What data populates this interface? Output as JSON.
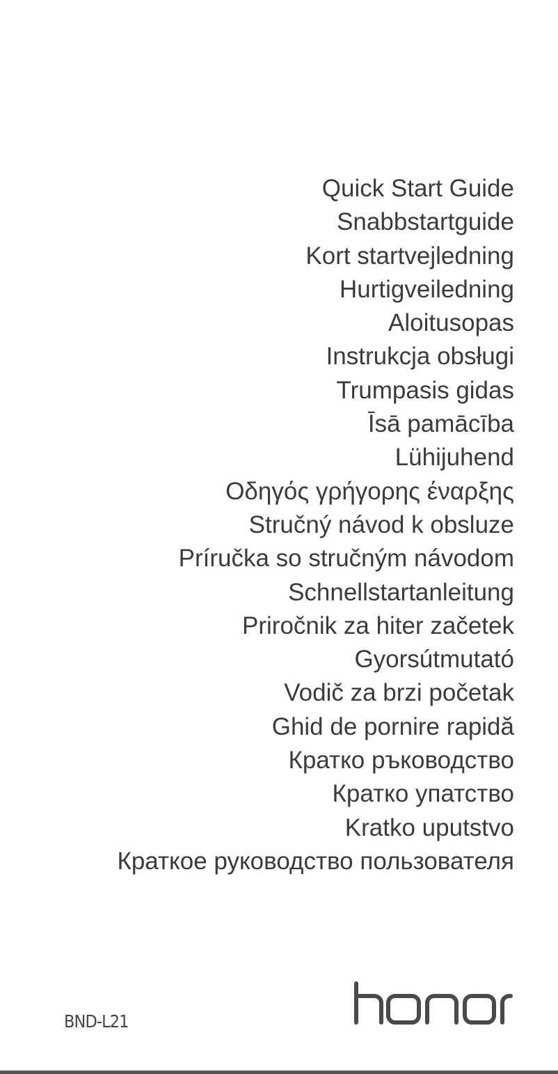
{
  "titles": [
    "Quick Start Guide",
    "Snabbstartguide",
    "Kort startvejledning",
    "Hurtigveiledning",
    "Aloitusopas",
    "Instrukcja obsługi",
    "Trumpasis gidas",
    "Īsā pamācība",
    "Lühijuhend",
    "Οδηγός γρήγορης έναρξης",
    "Stručný návod k obsluze",
    "Príručka so stručným návodom",
    "Schnellstartanleitung",
    "Priročnik za hiter začetek",
    "Gyorsútmutató",
    "Vodič za brzi početak",
    "Ghid de pornire rapidă",
    "Кратко ръководство",
    "Кратко упатство",
    "Kratko uputstvo",
    "Краткое руководство пользователя"
  ],
  "footer": {
    "model": "BND-L21",
    "brand_logo": "honor"
  },
  "colors": {
    "text": "#3b3b3b",
    "logo": "#4a4a4a",
    "rule": "#555555"
  }
}
